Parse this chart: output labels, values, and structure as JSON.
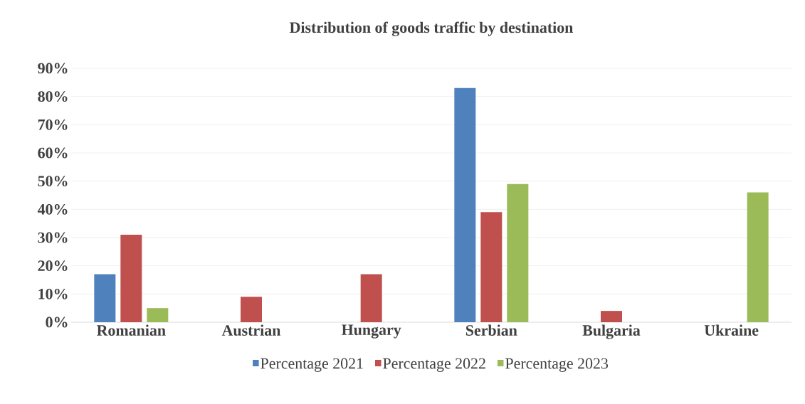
{
  "chart_data": {
    "type": "bar",
    "title": "Distribution of goods traffic by destination",
    "categories": [
      "Romanian",
      "Austrian",
      "Hungary",
      "Serbian",
      "Bulgaria",
      "Ukraine"
    ],
    "series": [
      {
        "name": "Percentage 2021",
        "color": "#4f81bd",
        "values": [
          17,
          null,
          null,
          83,
          null,
          null
        ]
      },
      {
        "name": "Percentage 2022",
        "color": "#c0504d",
        "values": [
          31,
          9,
          17,
          39,
          4,
          null
        ]
      },
      {
        "name": "Percentage 2023",
        "color": "#9bbb59",
        "values": [
          5,
          null,
          null,
          49,
          null,
          46
        ]
      }
    ],
    "ylim": [
      0,
      90
    ],
    "yticks": [
      {
        "value": 0,
        "label": "0%"
      },
      {
        "value": 10,
        "label": "10%"
      },
      {
        "value": 20,
        "label": "20%"
      },
      {
        "value": 30,
        "label": "30%"
      },
      {
        "value": 40,
        "label": "40%"
      },
      {
        "value": 50,
        "label": "50%"
      },
      {
        "value": 60,
        "label": "60%"
      },
      {
        "value": 70,
        "label": "70%"
      },
      {
        "value": 80,
        "label": "80%"
      },
      {
        "value": 90,
        "label": "90%"
      }
    ],
    "grid": "y",
    "legend": "bottom"
  }
}
